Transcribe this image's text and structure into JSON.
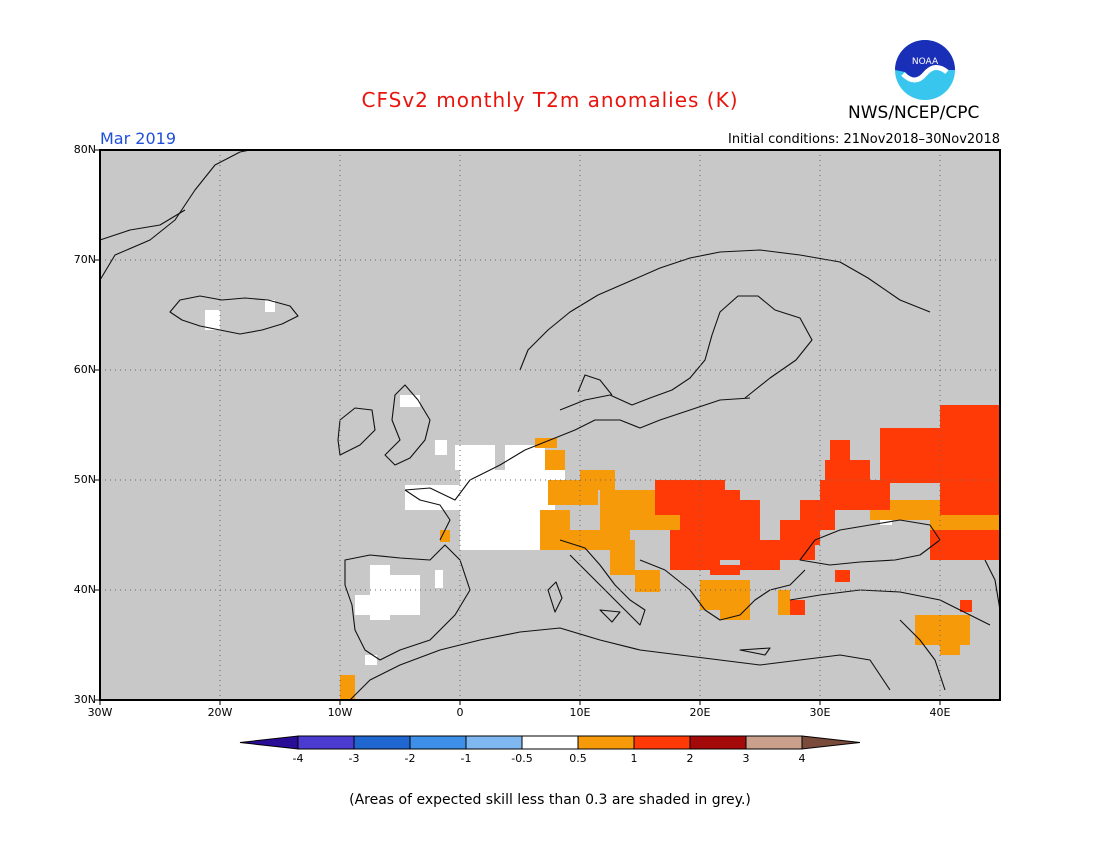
{
  "title": "CFSv2 monthly T2m anomalies (K)",
  "agency": "NWS/NCEP/CPC",
  "month": "Mar 2019",
  "initial_conditions": "Initial conditions: 21Nov2018–30Nov2018",
  "logo_text": "NOAA",
  "footnote": "(Areas of expected skill less than 0.3 are shaded in grey.)",
  "lat_labels": [
    "80N",
    "70N",
    "60N",
    "50N",
    "40N",
    "30N"
  ],
  "lon_labels": [
    "30W",
    "20W",
    "10W",
    "0",
    "10E",
    "20E",
    "30E",
    "40E"
  ],
  "colorbar": {
    "labels": [
      "-4",
      "-3",
      "-2",
      "-1",
      "-0.5",
      "0.5",
      "1",
      "2",
      "3",
      "4"
    ],
    "colors": [
      "#2a0d96",
      "#4b3bd0",
      "#1f66d0",
      "#3d8fe8",
      "#7fb8f0",
      "#ffffff",
      "#f79a0a",
      "#ff3a06",
      "#a50a0a",
      "#c9a08c",
      "#7a4a3a"
    ]
  },
  "colors": {
    "grey_low_skill": "#c8c8c8",
    "anomaly_white": "#ffffff",
    "anomaly_orange": "#f79a0a",
    "anomaly_red": "#ff3a06",
    "title_red": "#e8150e",
    "month_blue": "#1f4fd8"
  }
}
